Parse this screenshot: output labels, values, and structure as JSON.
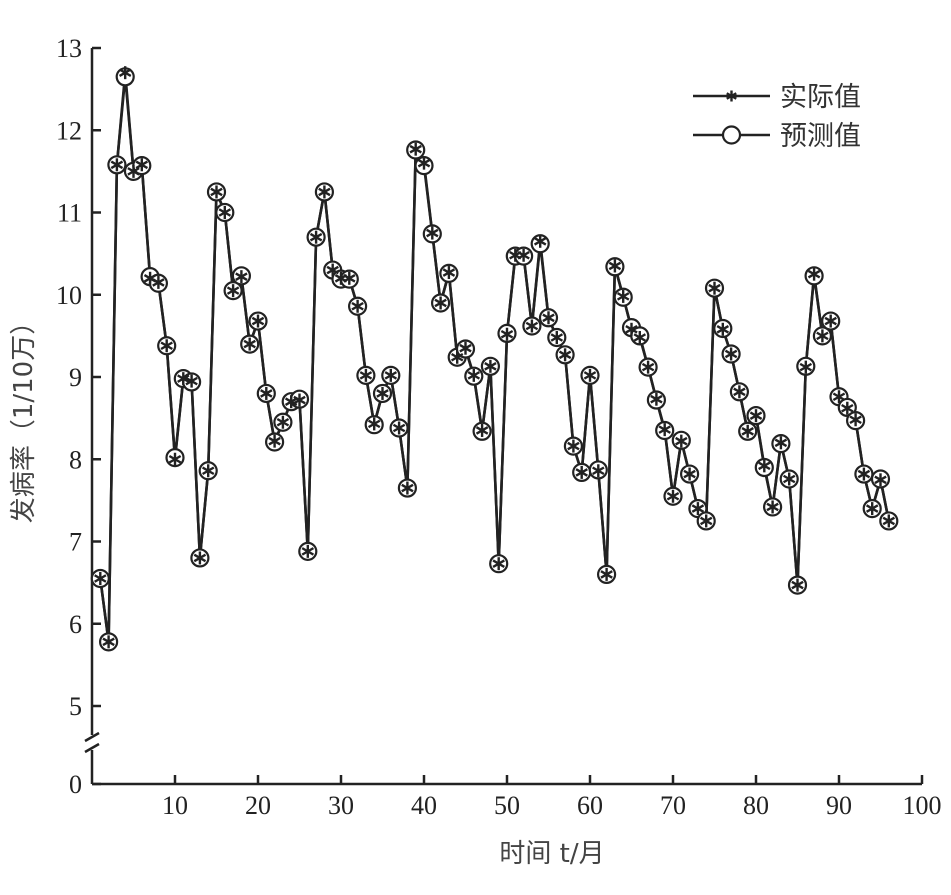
{
  "chart_data": {
    "type": "line",
    "title": "",
    "xlabel": "时间 t/月",
    "ylabel": "发病率（1/10万）",
    "xlim": [
      0,
      100
    ],
    "ylim_display": [
      4.5,
      13
    ],
    "axis_break": true,
    "xticks": [
      10,
      20,
      30,
      40,
      50,
      60,
      70,
      80,
      90,
      100
    ],
    "yticks": [
      0,
      5,
      6,
      7,
      8,
      9,
      10,
      11,
      12,
      13
    ],
    "legend_position": "top-right",
    "grid": false,
    "x": [
      1,
      2,
      3,
      4,
      5,
      6,
      7,
      8,
      9,
      10,
      11,
      12,
      13,
      14,
      15,
      16,
      17,
      18,
      19,
      20,
      21,
      22,
      23,
      24,
      25,
      26,
      27,
      28,
      29,
      30,
      31,
      32,
      33,
      34,
      35,
      36,
      37,
      38,
      39,
      40,
      41,
      42,
      43,
      44,
      45,
      46,
      47,
      48,
      49,
      50,
      51,
      52,
      53,
      54,
      55,
      56,
      57,
      58,
      59,
      60,
      61,
      62,
      63,
      64,
      65,
      66,
      67,
      68,
      69,
      70,
      71,
      72,
      73,
      74,
      75,
      76,
      77,
      78,
      79,
      80,
      81,
      82,
      83,
      84,
      85,
      86,
      87,
      88,
      89,
      90,
      91,
      92,
      93,
      94,
      95,
      96
    ],
    "series": [
      {
        "name": "实际值",
        "marker": "asterisk",
        "values": [
          6.55,
          5.78,
          11.58,
          12.7,
          11.5,
          11.58,
          10.2,
          10.15,
          9.38,
          8.0,
          8.98,
          8.95,
          6.8,
          7.86,
          11.25,
          11.0,
          10.05,
          10.22,
          9.4,
          9.68,
          8.8,
          8.22,
          8.45,
          8.7,
          8.72,
          6.88,
          10.7,
          11.25,
          10.3,
          10.2,
          10.2,
          9.86,
          9.02,
          8.43,
          8.8,
          9.02,
          8.38,
          7.65,
          11.77,
          11.6,
          10.75,
          9.9,
          10.27,
          9.24,
          9.35,
          9.02,
          8.35,
          9.13,
          6.73,
          9.52,
          10.48,
          10.48,
          9.62,
          10.65,
          9.72,
          9.48,
          9.27,
          8.16,
          7.84,
          9.02,
          7.86,
          6.6,
          10.35,
          9.98,
          9.58,
          9.48,
          9.12,
          8.73,
          8.36,
          7.55,
          8.22,
          7.82,
          7.4,
          7.25,
          10.08,
          9.58,
          9.28,
          8.82,
          8.34,
          8.53,
          7.92,
          7.42,
          8.2,
          7.76,
          6.47,
          9.12,
          10.25,
          9.5,
          9.68,
          8.76,
          8.62,
          8.48,
          7.82,
          7.4,
          7.75,
          7.25
        ]
      },
      {
        "name": "预测值",
        "marker": "circle",
        "values": [
          6.55,
          5.78,
          11.58,
          12.65,
          11.5,
          11.57,
          10.22,
          10.14,
          9.38,
          8.02,
          8.98,
          8.94,
          6.8,
          7.86,
          11.25,
          11.0,
          10.05,
          10.23,
          9.4,
          9.68,
          8.8,
          8.21,
          8.45,
          8.7,
          8.73,
          6.88,
          10.7,
          11.25,
          10.3,
          10.19,
          10.19,
          9.86,
          9.02,
          8.42,
          8.8,
          9.02,
          8.38,
          7.65,
          11.76,
          11.57,
          10.74,
          9.9,
          10.26,
          9.24,
          9.34,
          9.01,
          8.34,
          9.13,
          6.73,
          9.53,
          10.47,
          10.47,
          9.62,
          10.62,
          9.72,
          9.48,
          9.27,
          8.16,
          7.84,
          9.02,
          7.87,
          6.6,
          10.34,
          9.97,
          9.6,
          9.5,
          9.12,
          8.72,
          8.35,
          7.55,
          8.23,
          7.82,
          7.4,
          7.25,
          10.08,
          9.59,
          9.28,
          8.82,
          8.34,
          8.53,
          7.9,
          7.42,
          8.19,
          7.76,
          6.47,
          9.13,
          10.23,
          9.5,
          9.68,
          8.76,
          8.63,
          8.47,
          7.82,
          7.4,
          7.76,
          7.25
        ]
      }
    ]
  }
}
